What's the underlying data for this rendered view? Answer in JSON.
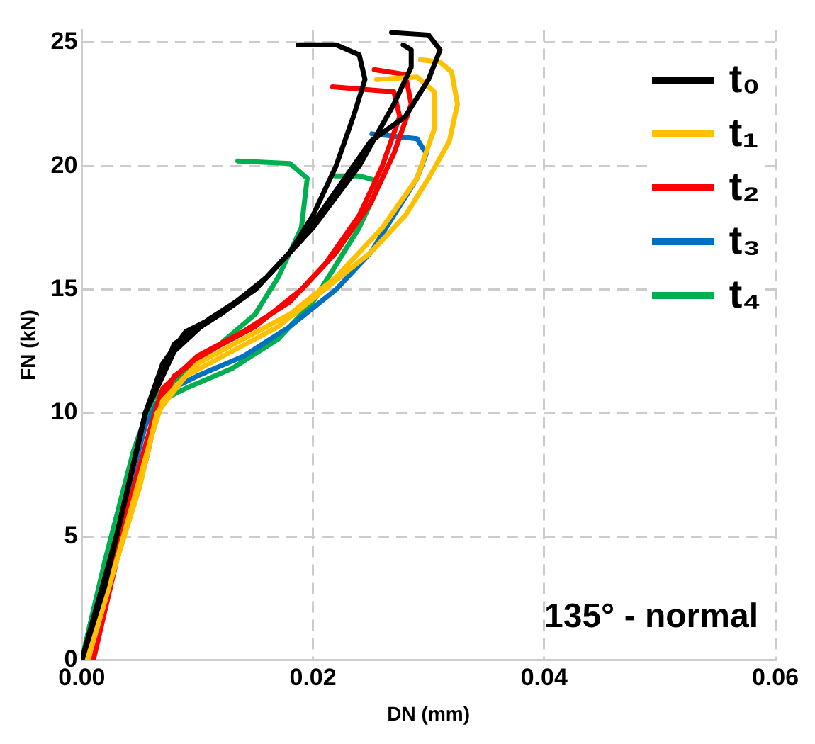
{
  "chart_data": {
    "type": "line",
    "xlabel": "DN (mm)",
    "ylabel": "FN (kN)",
    "xlim": [
      0,
      0.06
    ],
    "xticks": [
      {
        "value": 0,
        "label": "0.00"
      },
      0.02,
      0.04,
      0.06
    ],
    "ylim": [
      0,
      25.5
    ],
    "yticks": [
      0,
      5,
      10,
      15,
      20,
      25
    ],
    "grid": true,
    "legend": "top right",
    "marker": "none",
    "line_style": "solid",
    "annotations": [
      "135° - normal"
    ],
    "series": [
      {
        "name": "t₀",
        "color": "#000000",
        "x": [
          0,
          0.002,
          0.004,
          0.0055,
          0.007,
          0.009,
          0.012,
          0.015,
          0.018,
          0.02,
          0.022,
          0.0235,
          0.0245,
          0.024,
          0.022,
          0.0187
        ],
        "values": [
          0,
          3,
          7,
          10,
          12,
          13.3,
          14,
          15,
          16.5,
          18,
          20,
          22,
          23.5,
          24.5,
          24.9,
          24.9
        ]
      },
      {
        "color": "#000000",
        "x": [
          0,
          0.003,
          0.0055,
          0.008,
          0.011,
          0.015,
          0.019,
          0.022,
          0.025,
          0.028,
          0.03,
          0.031,
          0.03,
          0.0268
        ],
        "values": [
          0,
          5,
          10,
          12.5,
          13.8,
          15,
          17,
          19,
          21,
          22,
          23.5,
          24.7,
          25.3,
          25.4
        ]
      },
      {
        "color": "#000000",
        "x": [
          0,
          0.003,
          0.0055,
          0.008,
          0.012,
          0.016,
          0.02,
          0.024,
          0.027,
          0.0285,
          0.0285,
          0.0278
        ],
        "values": [
          0,
          5,
          10,
          12.8,
          14,
          15.5,
          17.5,
          20,
          22.5,
          24,
          24.7,
          24.9
        ]
      },
      {
        "name": "t₁",
        "color": "#ffc000",
        "x": [
          0.0005,
          0.003,
          0.005,
          0.0065,
          0.009,
          0.013,
          0.017,
          0.021,
          0.025,
          0.028,
          0.03,
          0.0318,
          0.0325,
          0.032,
          0.031,
          0.0293
        ],
        "values": [
          0,
          4,
          7,
          10,
          11.5,
          12.5,
          13.5,
          15,
          16.5,
          18,
          19.5,
          21,
          22.5,
          23.8,
          24.2,
          24.3
        ]
      },
      {
        "color": "#ffc000",
        "x": [
          0.0005,
          0.003,
          0.006,
          0.007,
          0.01,
          0.014,
          0.018,
          0.022,
          0.026,
          0.029,
          0.0305,
          0.0305,
          0.029,
          0.0255
        ],
        "values": [
          0,
          4,
          9,
          10.5,
          12,
          13,
          14,
          15.5,
          17.5,
          19.5,
          21.5,
          23,
          23.6,
          23.5
        ]
      },
      {
        "name": "t₂",
        "color": "#ff0000",
        "x": [
          0.001,
          0.003,
          0.0055,
          0.0065,
          0.008,
          0.011,
          0.015,
          0.019,
          0.022,
          0.025,
          0.027,
          0.0285,
          0.028,
          0.0253
        ],
        "values": [
          0,
          4,
          8,
          10,
          11.5,
          12.5,
          13.5,
          15,
          16.5,
          18.5,
          20.5,
          22.5,
          23.7,
          23.9
        ]
      },
      {
        "color": "#ff0000",
        "x": [
          0.0005,
          0.003,
          0.006,
          0.007,
          0.01,
          0.014,
          0.018,
          0.021,
          0.024,
          0.026,
          0.0275,
          0.027,
          0.0217
        ],
        "values": [
          0,
          4.5,
          9.5,
          11,
          12.3,
          13.3,
          14.5,
          16,
          18,
          20,
          22,
          23,
          23.2
        ]
      },
      {
        "name": "t₃",
        "color": "#0070c0",
        "x": [
          0,
          0.003,
          0.0055,
          0.007,
          0.01,
          0.014,
          0.018,
          0.022,
          0.025,
          0.027,
          0.029,
          0.0298,
          0.029,
          0.0251
        ],
        "values": [
          0,
          5,
          9.5,
          10.8,
          11.5,
          12.3,
          13.5,
          15,
          16.5,
          18,
          19.5,
          20.5,
          21.1,
          21.3
        ]
      },
      {
        "name": "t₄",
        "color": "#00b050",
        "x": [
          0,
          0.002,
          0.0045,
          0.006,
          0.009,
          0.013,
          0.017,
          0.02,
          0.022,
          0.024,
          0.0255,
          0.0255,
          0.024,
          0.0219
        ],
        "values": [
          0,
          4,
          8.5,
          10.3,
          11,
          11.8,
          13,
          14.5,
          16,
          17.5,
          19,
          19.4,
          19.6,
          19.6
        ]
      },
      {
        "color": "#00b050",
        "x": [
          0,
          0.002,
          0.0045,
          0.006,
          0.009,
          0.012,
          0.015,
          0.017,
          0.019,
          0.0195,
          0.018,
          0.0135
        ],
        "values": [
          0,
          4,
          8.5,
          10.5,
          11.7,
          12.8,
          14,
          15.5,
          17.5,
          19.5,
          20.1,
          20.2
        ]
      }
    ]
  }
}
